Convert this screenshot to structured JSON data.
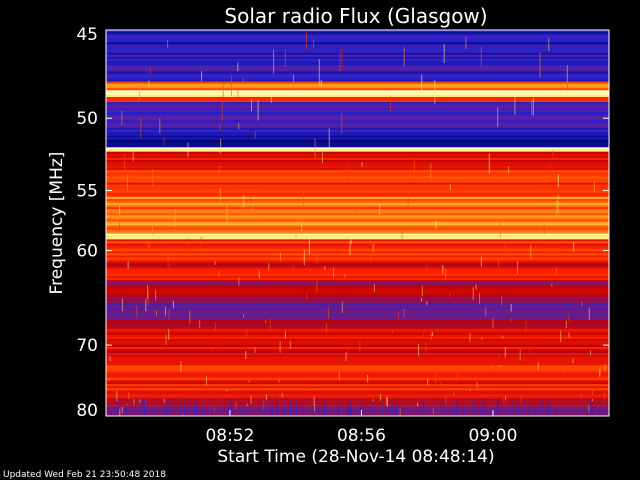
{
  "chart_data": {
    "type": "heatmap",
    "title": "Solar radio Flux (Glasgow)",
    "xlabel": "Start Time (28-Nov-14 08:48:14)",
    "ylabel": "Frequency [MHz]",
    "x_ticks": [
      "08:52",
      "08:56",
      "09:00"
    ],
    "x_tick_minutes": [
      3.77,
      7.77,
      11.77
    ],
    "x_range_minutes": [
      0,
      15.3
    ],
    "y_ticks": [
      45,
      50,
      55,
      60,
      70,
      80
    ],
    "y_range": [
      45,
      80
    ],
    "y_scale": "reciprocal",
    "grid": false,
    "colormap": [
      "#000060",
      "#2020d0",
      "#6020a0",
      "#c00000",
      "#ff2000",
      "#ff6000",
      "#ffd040",
      "#ffffc0"
    ],
    "frequency_bands": [
      {
        "from": 45,
        "to": 46.3,
        "level": 0.12
      },
      {
        "from": 46.3,
        "to": 47.8,
        "level": 0.18
      },
      {
        "from": 47.8,
        "to": 48.3,
        "level": 0.7
      },
      {
        "from": 48.3,
        "to": 48.7,
        "level": 1.0
      },
      {
        "from": 48.7,
        "to": 49.0,
        "level": 0.65
      },
      {
        "from": 49.0,
        "to": 51.0,
        "level": 0.2
      },
      {
        "from": 51.0,
        "to": 51.9,
        "level": 0.08
      },
      {
        "from": 51.9,
        "to": 52.2,
        "level": 0.95
      },
      {
        "from": 52.2,
        "to": 53.5,
        "level": 0.55
      },
      {
        "from": 53.5,
        "to": 55.5,
        "level": 0.62
      },
      {
        "from": 55.5,
        "to": 58.5,
        "level": 0.72
      },
      {
        "from": 58.5,
        "to": 59.0,
        "level": 0.9
      },
      {
        "from": 59.0,
        "to": 61.0,
        "level": 0.6
      },
      {
        "from": 61.0,
        "to": 63.0,
        "level": 0.5
      },
      {
        "from": 63.0,
        "to": 64.5,
        "level": 0.42
      },
      {
        "from": 64.5,
        "to": 67.0,
        "level": 0.3
      },
      {
        "from": 67.0,
        "to": 69.0,
        "level": 0.45
      },
      {
        "from": 69.0,
        "to": 71.5,
        "level": 0.5
      },
      {
        "from": 71.5,
        "to": 74.0,
        "level": 0.6
      },
      {
        "from": 74.0,
        "to": 77.0,
        "level": 0.55
      },
      {
        "from": 77.0,
        "to": 78.5,
        "level": 0.42
      },
      {
        "from": 78.5,
        "to": 80.0,
        "level": 0.3
      }
    ]
  },
  "footer": {
    "updated_text": "Updated Wed Feb 21 23:50:48 2018"
  }
}
